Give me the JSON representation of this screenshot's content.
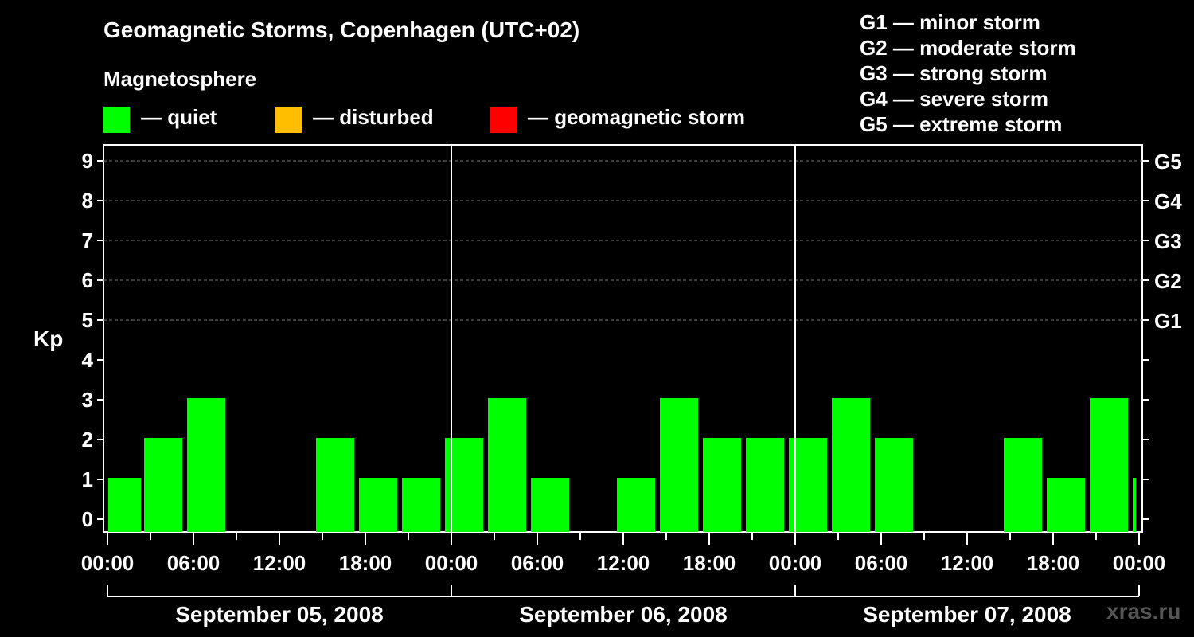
{
  "header": {
    "title": "Geomagnetic Storms, Copenhagen (UTC+02)",
    "subtitle": "Magnetosphere"
  },
  "legend": [
    {
      "label": "— quiet",
      "color": "#00ff00"
    },
    {
      "label": "— disturbed",
      "color": "#ffbf00"
    },
    {
      "label": "— geomagnetic storm",
      "color": "#ff0000"
    }
  ],
  "storm_scale": [
    "G1 — minor storm",
    "G2 — moderate storm",
    "G3 — strong storm",
    "G4 — severe storm",
    "G5 — extreme storm"
  ],
  "watermark": "xras.ru",
  "chart_data": {
    "type": "bar",
    "title": "Geomagnetic Storms, Copenhagen (UTC+02)",
    "ylabel": "Kp",
    "ylim": [
      0,
      9
    ],
    "yticks": [
      0,
      1,
      2,
      3,
      4,
      5,
      6,
      7,
      8,
      9
    ],
    "right_ticks": [
      {
        "kp": 5,
        "label": "G1"
      },
      {
        "kp": 6,
        "label": "G2"
      },
      {
        "kp": 7,
        "label": "G3"
      },
      {
        "kp": 8,
        "label": "G4"
      },
      {
        "kp": 9,
        "label": "G5"
      }
    ],
    "x_tick_labels": [
      "00:00",
      "06:00",
      "12:00",
      "18:00",
      "00:00",
      "06:00",
      "12:00",
      "18:00",
      "00:00",
      "06:00",
      "12:00",
      "18:00",
      "00:00"
    ],
    "days": [
      "September 05, 2008",
      "September 06, 2008",
      "September 07, 2008"
    ],
    "interval_hours": 3,
    "first_bar_start_hour": 1,
    "values": [
      1,
      2,
      3,
      0,
      0,
      2,
      1,
      1,
      2,
      3,
      1,
      0,
      1,
      3,
      2,
      2,
      2,
      3,
      2,
      0,
      0,
      2,
      1,
      3,
      1
    ],
    "bar_color": "#00ff00"
  }
}
